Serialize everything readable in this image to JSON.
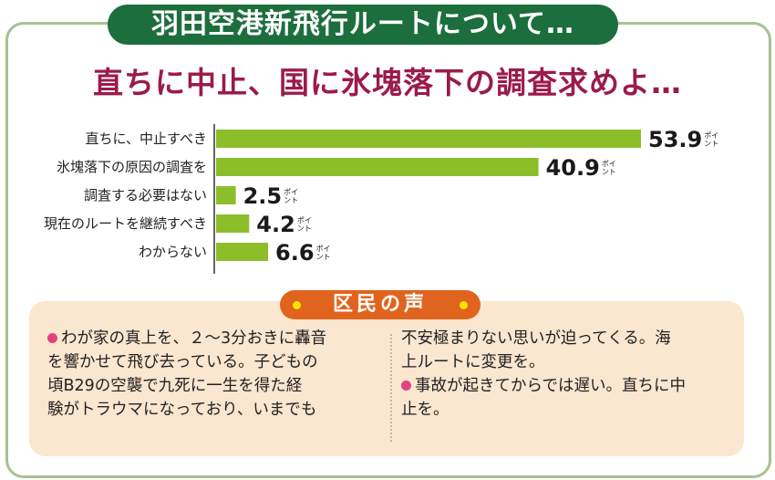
{
  "banner_title": "羽田空港新飛行ルートについて…",
  "headline": "直ちに中止、国に氷塊落下の調査求めよ…",
  "chart_data": {
    "type": "bar",
    "orientation": "horizontal",
    "categories": [
      "直ちに、中止すべき",
      "氷塊落下の原因の調査を",
      "調査する必要はない",
      "現在のルートを継続すべき",
      "わからない"
    ],
    "values": [
      53.9,
      40.9,
      2.5,
      4.2,
      6.6
    ],
    "value_labels": [
      "53.9",
      "40.9",
      "2.5",
      "4.2",
      "6.6"
    ],
    "unit_top": "ポイ",
    "unit_bottom": "ント",
    "xlim": [
      0,
      53.9
    ],
    "bar_color": "#8cbe2a",
    "grid": false
  },
  "voices": {
    "title": "区民の声",
    "left_lines": [
      "わが家の真上を、２～3分おきに轟音",
      "を響かせて飛び去っている。子どもの",
      "頃B29の空襲で九死に一生を得た経",
      "験がトラウマになっており、いまでも"
    ],
    "right_lines_1": [
      "不安極まりない思いが迫ってくる。海",
      "上ルートに変更を。"
    ],
    "right_lines_2": [
      "事故が起きてからでは遅い。直ちに中",
      "止を。"
    ]
  },
  "colors": {
    "banner_green": "#1c6e3c",
    "headline_red": "#9b1b4a",
    "frame_green": "#a9c18f",
    "voice_orange": "#e1641e",
    "voice_bg": "#fbe6cf",
    "bullet_pink": "#e2437e"
  }
}
